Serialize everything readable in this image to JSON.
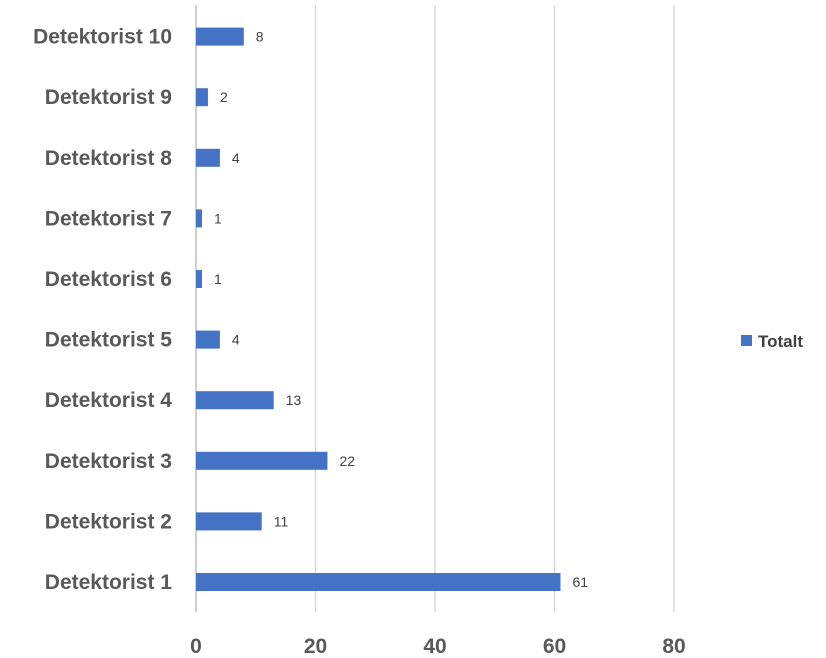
{
  "chart_data": {
    "type": "bar",
    "orientation": "horizontal",
    "categories": [
      "Detektorist 1",
      "Detektorist 2",
      "Detektorist 3",
      "Detektorist 4",
      "Detektorist 5",
      "Detektorist 6",
      "Detektorist 7",
      "Detektorist 8",
      "Detektorist 9",
      "Detektorist 10"
    ],
    "series": [
      {
        "name": "Totalt",
        "values": [
          61,
          11,
          22,
          13,
          4,
          1,
          1,
          4,
          2,
          8
        ],
        "color": "#4472C4"
      }
    ],
    "title": "",
    "xlabel": "",
    "ylabel": "",
    "xlim": [
      0,
      80
    ],
    "xticks": [
      0,
      20,
      40,
      60,
      80
    ],
    "xtick_labels": [
      "0",
      "20",
      "40",
      "60",
      "80"
    ],
    "grid": "vertical",
    "legend_position": "right",
    "data_labels": true
  }
}
